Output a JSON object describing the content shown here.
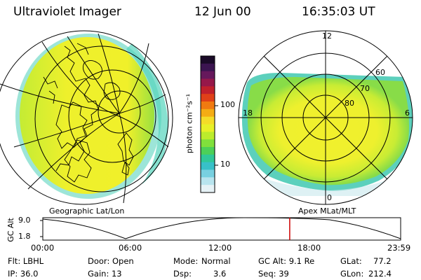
{
  "header": {
    "instrument": "Ultraviolet Imager",
    "date": "12 Jun 00",
    "time": "16:35:03 UT"
  },
  "left_panel": {
    "caption": "Geographic Lat/Lon"
  },
  "right_panel": {
    "caption": "Apex MLat/MLT",
    "lat_labels": [
      "60",
      "70",
      "80"
    ],
    "mlt_labels": [
      "12",
      "18",
      "6",
      "0"
    ]
  },
  "colorbar": {
    "title": "photon cm⁻²s⁻¹",
    "ticks": [
      "100",
      "10"
    ],
    "colors": [
      "#1a0a28",
      "#3b1450",
      "#66185c",
      "#96184a",
      "#c0202c",
      "#e04018",
      "#f07a10",
      "#f4ac14",
      "#f4dc28",
      "#e8f028",
      "#bcec2c",
      "#80e03c",
      "#4cd058",
      "#30c898",
      "#38c0c8",
      "#78d0e0",
      "#b8e4ee",
      "#e6f2f6"
    ]
  },
  "orbit_plot": {
    "ylabel": "GC Alt",
    "y_ticks": [
      "9.0",
      "1.8"
    ],
    "x_ticks": [
      "00:00",
      "06:00",
      "12:00",
      "18:00",
      "23:59"
    ],
    "marker_color": "#cc0000",
    "marker_fraction": 0.69
  },
  "status": {
    "filter": "Flt: LBHL",
    "door": "Door: Open",
    "mode_label": "Mode:",
    "mode_value": "Normal",
    "gc_alt": "GC Alt: 9.1 Re",
    "glat_label": "GLat:",
    "glat_value": "77.2",
    "ip": "IP: 36.0",
    "gain": "Gain: 13",
    "dsp_label": "Dsp:",
    "dsp_value": "3.6",
    "seq": "Seq: 39",
    "glon_label": "GLon:",
    "glon_value": "212.4"
  }
}
